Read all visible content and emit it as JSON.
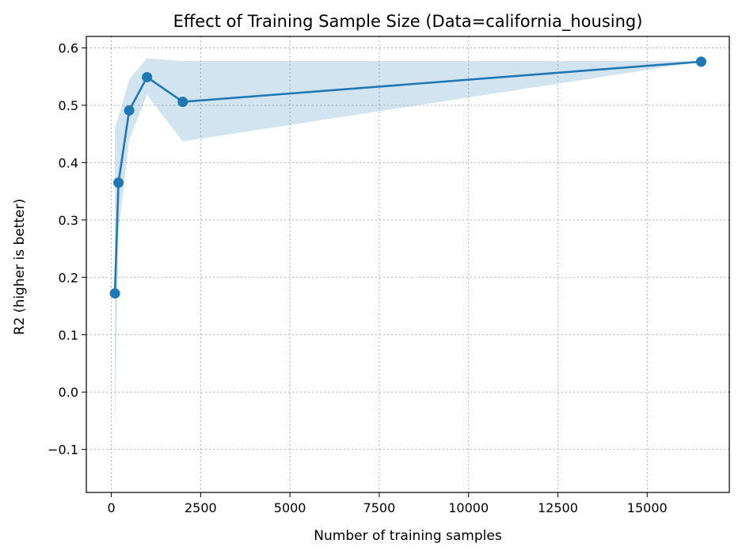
{
  "chart_data": {
    "type": "line",
    "title": "Effect of Training Sample Size (Data=california_housing)",
    "xlabel": "Number of training samples",
    "ylabel": "R2 (higher is better)",
    "xlim": [
      -700,
      17300
    ],
    "ylim": [
      -0.175,
      0.62
    ],
    "xticks": [
      0,
      2500,
      5000,
      7500,
      10000,
      12500,
      15000
    ],
    "xtick_labels": [
      "0",
      "2500",
      "5000",
      "7500",
      "10000",
      "12500",
      "15000"
    ],
    "yticks": [
      -0.1,
      0.0,
      0.1,
      0.2,
      0.3,
      0.4,
      0.5,
      0.6
    ],
    "ytick_labels": [
      "−0.1",
      "0.0",
      "0.1",
      "0.2",
      "0.3",
      "0.4",
      "0.5",
      "0.6"
    ],
    "grid": true,
    "series": [
      {
        "x": [
          100,
          200,
          500,
          1000,
          2000,
          16512
        ],
        "values": [
          0.172,
          0.365,
          0.491,
          0.549,
          0.506,
          0.576
        ],
        "lower": [
          -0.075,
          0.28,
          0.44,
          0.518,
          0.437,
          0.576
        ],
        "upper": [
          0.46,
          0.48,
          0.545,
          0.582,
          0.577,
          0.577
        ],
        "color": "#1f77b4",
        "band_color": "#1f77b4"
      }
    ]
  }
}
